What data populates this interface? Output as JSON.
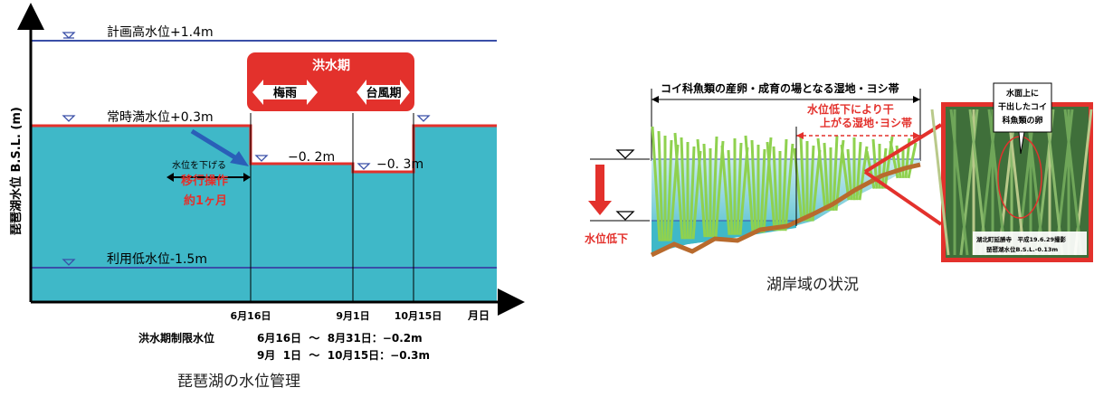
{
  "left": {
    "y_axis_label": "琵琶湖水位 B.S.L. (m)",
    "x_axis_label": "月日",
    "levels": {
      "plan_high": "計画高水位+1.4m",
      "normal": "常時満水位+0.3m",
      "low_use": "利用低水位-1.5m",
      "flood_1": "−0. 2m",
      "flood_2": "−0. 3m"
    },
    "flood_box": {
      "title": "洪水期",
      "rainy": "梅雨",
      "typhoon": "台風期"
    },
    "transition": {
      "lower": "水位を下げる",
      "op": "移行操作",
      "dur": "約1ヶ月"
    },
    "dates": {
      "d1": "6月16日",
      "d2": "9月1日",
      "d3": "10月15日"
    },
    "limits": {
      "label": "洪水期制限水位",
      "row1": "6月16日  〜  8月31日：−0.2m",
      "row2": "9月  1日  〜  10月15日：−0.3m"
    },
    "caption": "琵琶湖の水位管理"
  },
  "right": {
    "header": "コイ科魚類の産卵・成育の場となる湿地・ヨシ帯",
    "sub_line1": "水位低下により干",
    "sub_line2": "上がる湿地･ヨシ帯",
    "drop_label": "水位低下",
    "callout_line1": "水面上に",
    "callout_line2": "干出したコイ",
    "callout_line3": "科魚類の卵",
    "photo_line1": "湖北町延勝寺　平成19.6.29撮影",
    "photo_line2": "琵琶湖水位B.S.L.-0.13m",
    "caption": "湖岸域の状況"
  },
  "colors": {
    "water": "#3fb8c8",
    "red": "#e3312c",
    "blue_line": "#3a4fa8",
    "soil": "#b86a2d",
    "reed": "#8fd14f"
  }
}
